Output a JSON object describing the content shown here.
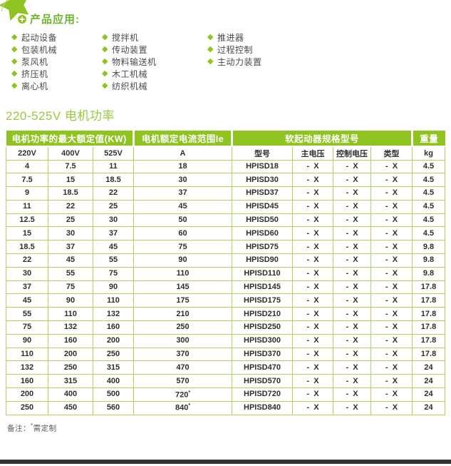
{
  "colors": {
    "brand_green": "#8fc31f",
    "title_green": "#6ab62e",
    "section_title_green": "#9cc83e",
    "table_border_green": "#aed35f",
    "header_text": "#ffffff",
    "body_text": "#2e2e2e",
    "footer_bar": "#333333"
  },
  "header": {
    "icon": "star-plus-icon",
    "title": "产品应用:"
  },
  "applications": {
    "bullet_icon": "diamond-bullet-icon",
    "columns": [
      [
        "起动设备",
        "包装机械",
        "泵风机",
        "挤压机",
        "离心机"
      ],
      [
        "搅拌机",
        "传动装置",
        "物料输送机",
        "木工机械",
        "纺织机械"
      ],
      [
        "推进器",
        "过程控制",
        "主动力装置"
      ]
    ]
  },
  "section_title": "220-525V 电机功率",
  "table": {
    "group_headers": [
      {
        "label": "电机功率的最大额定值(KW)",
        "colspan": "3"
      },
      {
        "label": "电机额定电流范围Ie",
        "colspan": "1"
      },
      {
        "label": "软起动器规格型号",
        "colspan": "4"
      },
      {
        "label": "重量",
        "colspan": "1"
      }
    ],
    "columns": [
      "220V",
      "400V",
      "525V",
      "A",
      "型号",
      "主电压",
      "控制电压",
      "类型",
      "kg"
    ],
    "rows": [
      [
        "4",
        "7.5",
        "11",
        "18",
        "HPISD18",
        "-  X",
        "-  X",
        "-  X",
        "4.5"
      ],
      [
        "7.5",
        "15",
        "18.5",
        "30",
        "HPISD30",
        "-  X",
        "-  X",
        "-  X",
        "4.5"
      ],
      [
        "9",
        "18.5",
        "22",
        "37",
        "HPISD37",
        "-  X",
        "-  X",
        "-  X",
        "4.5"
      ],
      [
        "11",
        "22",
        "25",
        "45",
        "HPISD45",
        "-  X",
        "-  X",
        "-  X",
        "4.5"
      ],
      [
        "12.5",
        "25",
        "30",
        "50",
        "HPISD50",
        "-  X",
        "-  X",
        "-  X",
        "4.5"
      ],
      [
        "15",
        "30",
        "37",
        "60",
        "HPISD60",
        "-  X",
        "-  X",
        "-  X",
        "4.5"
      ],
      [
        "18.5",
        "37",
        "45",
        "75",
        "HPISD75",
        "-  X",
        "-  X",
        "-  X",
        "9.8"
      ],
      [
        "22",
        "45",
        "55",
        "90",
        "HPISD90",
        "-  X",
        "-  X",
        "-  X",
        "9.8"
      ],
      [
        "30",
        "55",
        "75",
        "110",
        "HPISD110",
        "-  X",
        "-  X",
        "-  X",
        "9.8"
      ],
      [
        "37",
        "75",
        "90",
        "145",
        "HPISD145",
        "-  X",
        "-  X",
        "-  X",
        "17.8"
      ],
      [
        "45",
        "90",
        "110",
        "175",
        "HPISD175",
        "-  X",
        "-  X",
        "-  X",
        "17.8"
      ],
      [
        "55",
        "110",
        "132",
        "210",
        "HPISD210",
        "-  X",
        "-  X",
        "-  X",
        "17.8"
      ],
      [
        "75",
        "132",
        "160",
        "250",
        "HPISD250",
        "-  X",
        "-  X",
        "-  X",
        "17.8"
      ],
      [
        "90",
        "160",
        "200",
        "300",
        "HPISD300",
        "-  X",
        "-  X",
        "-  X",
        "17.8"
      ],
      [
        "110",
        "200",
        "250",
        "370",
        "HPISD370",
        "-  X",
        "-  X",
        "-  X",
        "17.8"
      ],
      [
        "132",
        "250",
        "315",
        "470",
        "HPISD470",
        "-  X",
        "-  X",
        "-  X",
        "24"
      ],
      [
        "160",
        "315",
        "400",
        "570",
        "HPISD570",
        "-  X",
        "-  X",
        "-  X",
        "24"
      ],
      [
        "200",
        "400",
        "500",
        "720*",
        "HPISD720",
        "-  X",
        "-  X",
        "-  X",
        "24"
      ],
      [
        "250",
        "450",
        "560",
        "840*",
        "HPISD840",
        "-  X",
        "-  X",
        "-  X",
        "24"
      ]
    ]
  },
  "footnote": {
    "label": "备注：",
    "marker": "*",
    "text": "需定制"
  }
}
